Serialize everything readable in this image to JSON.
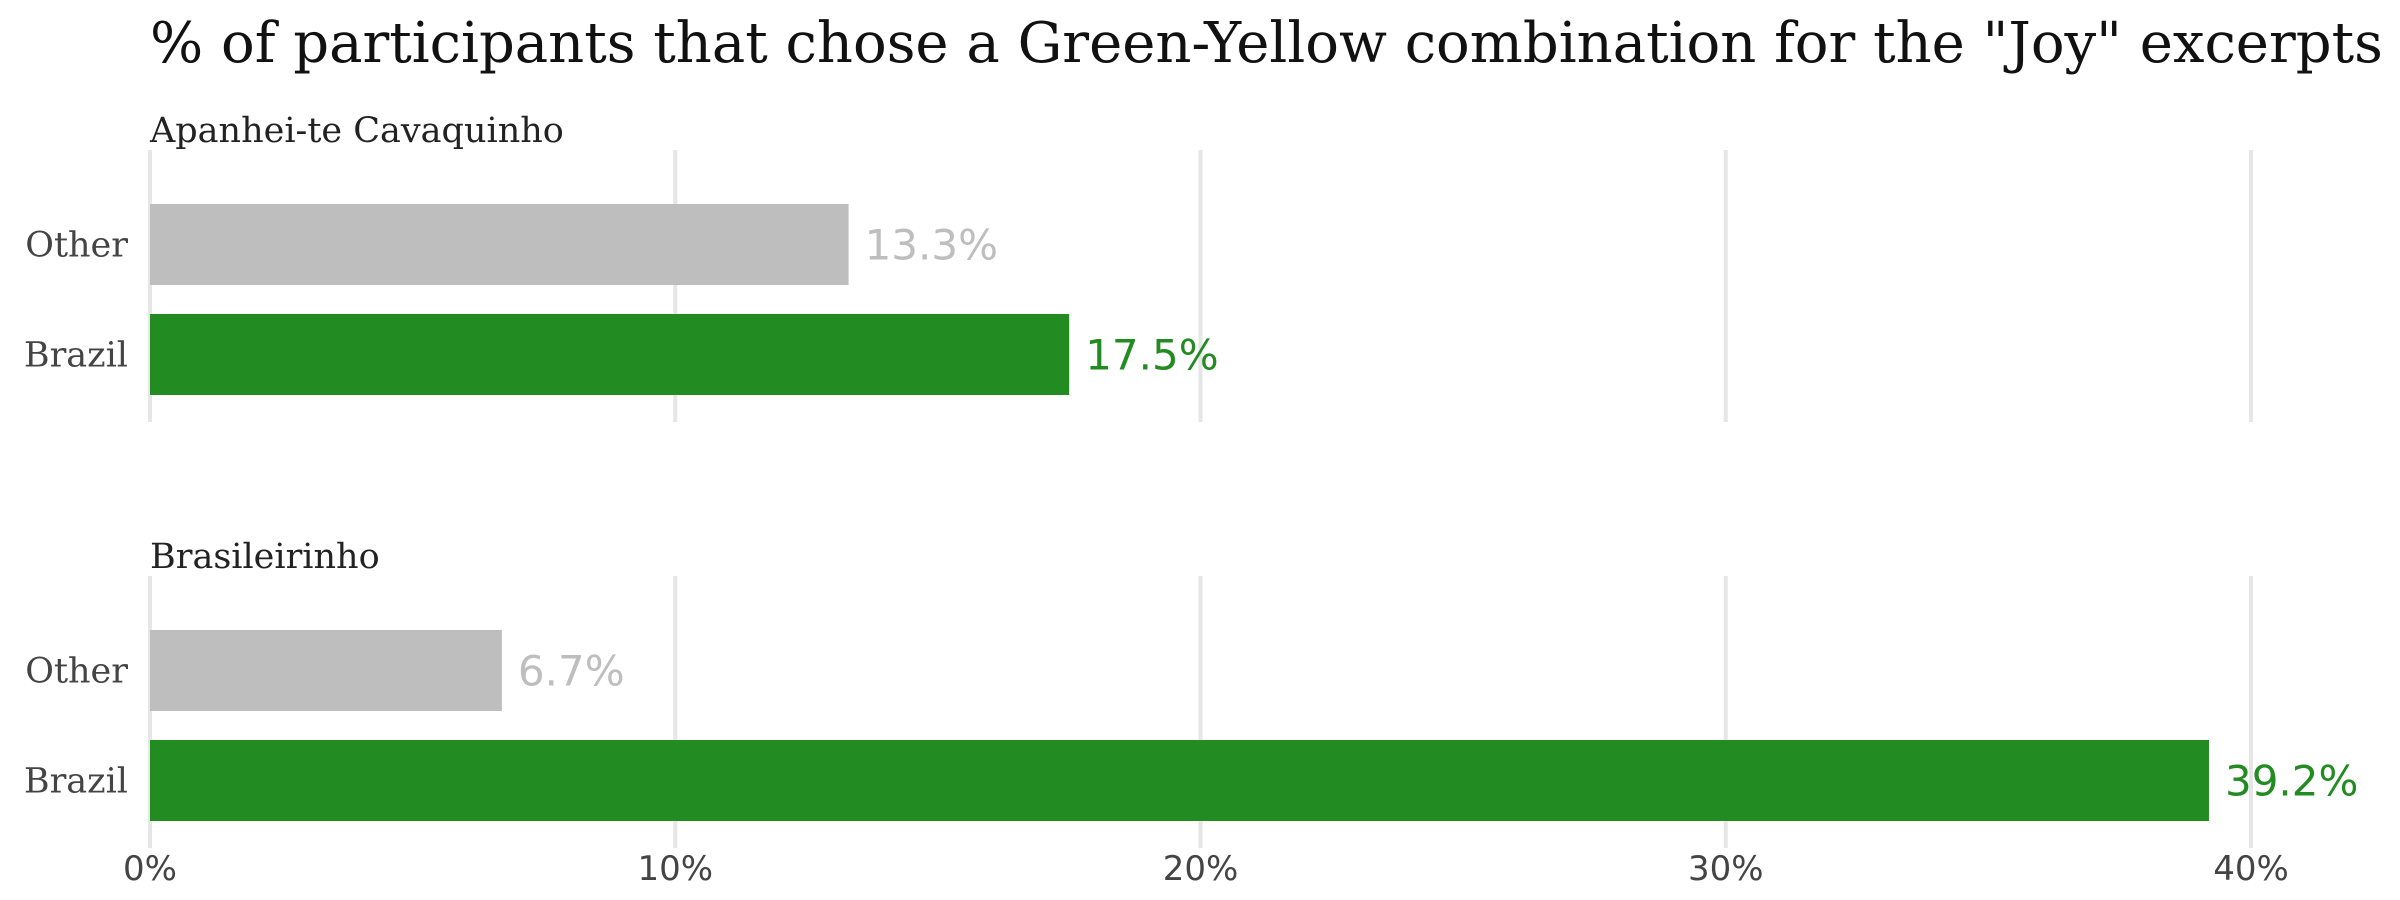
{
  "chart_data": {
    "type": "bar",
    "orientation": "horizontal",
    "title": "% of participants that chose a Green-Yellow combination for the \"Joy\" excerpts",
    "xlabel": "",
    "ylabel": "",
    "xlim": [
      0,
      40
    ],
    "xticks": [
      0,
      10,
      20,
      30,
      40
    ],
    "xtick_labels": [
      "0%",
      "10%",
      "20%",
      "30%",
      "40%"
    ],
    "grid": "vertical",
    "colors": {
      "Other": "#bebebe",
      "Brazil": "#228b22"
    },
    "panels": [
      {
        "title": "Apanhei-te Cavaquinho",
        "categories": [
          "Other",
          "Brazil"
        ],
        "values": [
          13.3,
          17.5
        ],
        "labels": [
          "13.3%",
          "17.5%"
        ]
      },
      {
        "title": "Brasileirinho",
        "categories": [
          "Other",
          "Brazil"
        ],
        "values": [
          6.7,
          39.2
        ],
        "labels": [
          "6.7%",
          "39.2%"
        ]
      }
    ]
  }
}
